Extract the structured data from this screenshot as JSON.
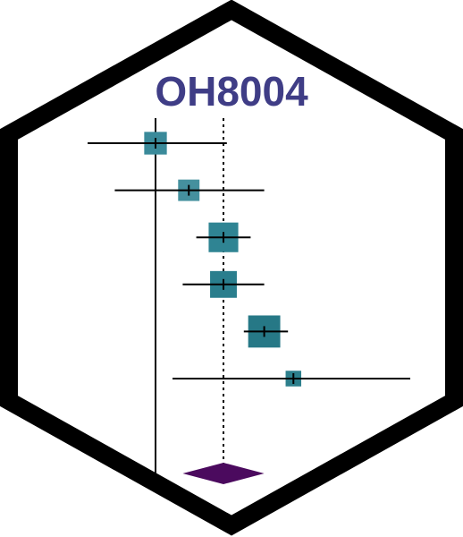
{
  "logo": {
    "title": "OH8004",
    "title_color": "#3f3d86",
    "border_color": "#000000",
    "background_color": "#ffffff"
  },
  "chart_data": {
    "type": "forest",
    "title": "",
    "xlabel": "",
    "ylabel": "",
    "null_line": 0,
    "pooled_line": 1,
    "xlim": [
      -1.05,
      3.85
    ],
    "studies": [
      {
        "estimate": 0,
        "ci": [
          -1.0,
          1.05
        ],
        "weight": 0.55,
        "color": "#3a8a9a"
      },
      {
        "estimate": 0.49,
        "ci": [
          -0.6,
          1.6
        ],
        "weight": 0.52,
        "color": "#45909e"
      },
      {
        "estimate": 1.0,
        "ci": [
          0.6,
          1.4
        ],
        "weight": 0.72,
        "color": "#2f8493"
      },
      {
        "estimate": 1.0,
        "ci": [
          0.4,
          1.6
        ],
        "weight": 0.65,
        "color": "#2a7e8d"
      },
      {
        "estimate": 1.6,
        "ci": [
          1.3,
          1.95
        ],
        "weight": 0.78,
        "color": "#267886"
      },
      {
        "estimate": 2.03,
        "ci": [
          0.25,
          3.75
        ],
        "weight": 0.38,
        "color": "#2d7f8c"
      }
    ],
    "pooled": {
      "estimate": 1.0,
      "ci": [
        0.4,
        1.6
      ],
      "color": "#4b0a5e"
    }
  }
}
